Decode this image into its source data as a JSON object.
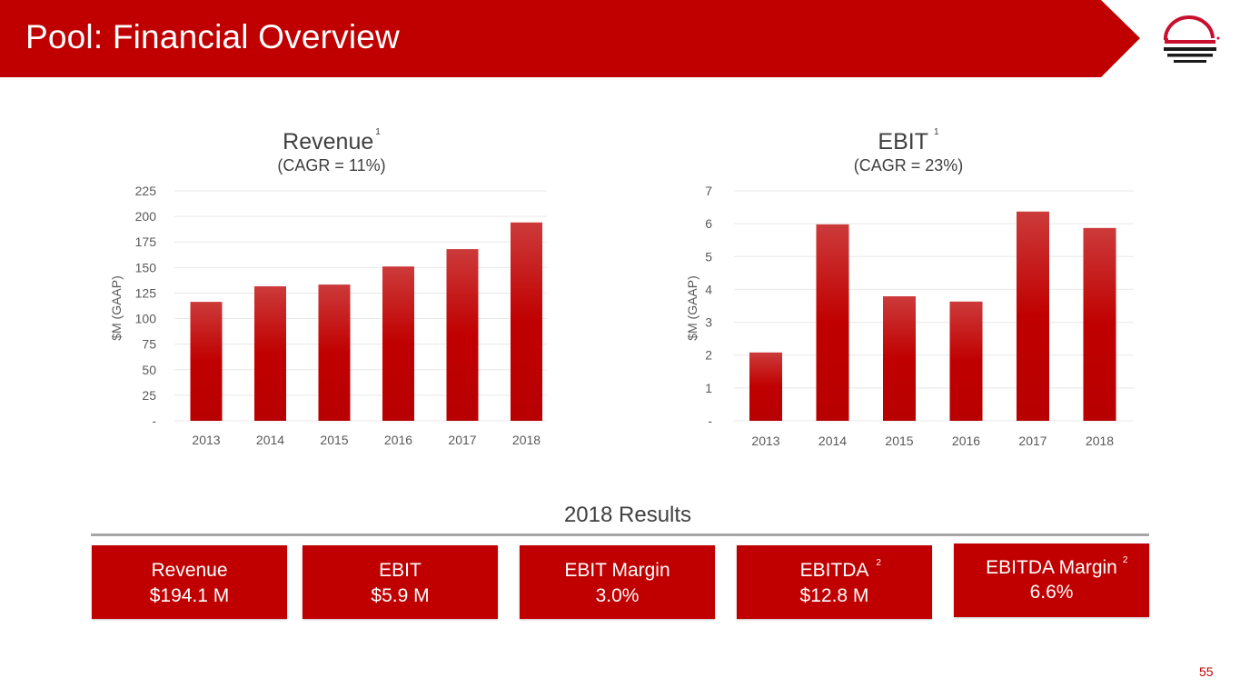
{
  "header": {
    "title": "Pool: Financial Overview",
    "banner_color": "#c00000",
    "logo_icon": "sunset-logo-icon"
  },
  "chart_data": [
    {
      "type": "bar",
      "title": "Revenue",
      "title_footnote": "1",
      "subtitle": "(CAGR = 11%)",
      "xlabel": "",
      "ylabel": "$M (GAAP)",
      "categories": [
        "2013",
        "2014",
        "2015",
        "2016",
        "2017",
        "2018"
      ],
      "values": [
        116.4,
        131.6,
        133.3,
        151.0,
        168.0,
        194.1
      ],
      "ylim": [
        0,
        225
      ],
      "yticks": [
        0,
        25,
        50,
        75,
        100,
        125,
        150,
        175,
        200,
        225
      ],
      "ytick_labels": [
        "-",
        "25",
        "50",
        "75",
        "100",
        "125",
        "150",
        "175",
        "200",
        "225"
      ],
      "grid": true,
      "bar_color": "#c00000"
    },
    {
      "type": "bar",
      "title": "EBIT",
      "title_footnote": "1",
      "subtitle": "(CAGR = 23%)",
      "xlabel": "",
      "ylabel": "$M (GAAP)",
      "categories": [
        "2013",
        "2014",
        "2015",
        "2016",
        "2017",
        "2018"
      ],
      "values": [
        2.08,
        5.98,
        3.79,
        3.63,
        6.37,
        5.87
      ],
      "ylim": [
        0,
        7
      ],
      "yticks": [
        0,
        1,
        2,
        3,
        4,
        5,
        6,
        7
      ],
      "ytick_labels": [
        "-",
        "1",
        "2",
        "3",
        "4",
        "5",
        "6",
        "7"
      ],
      "grid": true,
      "bar_color": "#c00000"
    }
  ],
  "results": {
    "title": "2018 Results",
    "cards": [
      {
        "label": "Revenue",
        "value": "$194.1 M",
        "footnote": ""
      },
      {
        "label": "EBIT",
        "value": "$5.9 M",
        "footnote": ""
      },
      {
        "label": "EBIT Margin",
        "value": "3.0%",
        "footnote": ""
      },
      {
        "label": "EBITDA",
        "value": "$12.8 M",
        "footnote": "2"
      },
      {
        "label": "EBITDA Margin",
        "value": "6.6%",
        "footnote": "2"
      }
    ]
  },
  "footer": {
    "page_number": "55"
  }
}
